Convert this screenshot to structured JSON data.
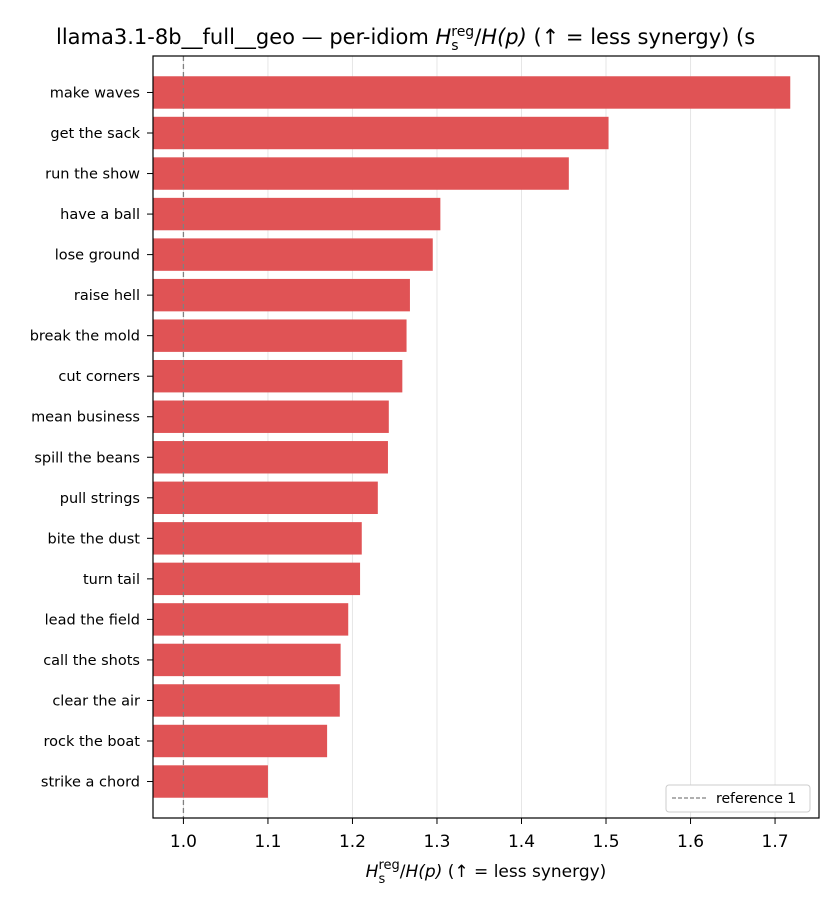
{
  "chart_data": {
    "type": "bar",
    "orientation": "horizontal",
    "title_prefix": "llama3.1-8b__full__geo — per-idiom ",
    "title_suffix": "  (↑ = less synergy) (s",
    "xlabel_suffix": "  (↑ = less synergy)",
    "metric": {
      "symbol": "H",
      "sub": "s",
      "sup": "reg",
      "denominator": "H(p)"
    },
    "categories": [
      "make waves",
      "get the sack",
      "run the show",
      "have a ball",
      "lose ground",
      "raise hell",
      "break the mold",
      "cut corners",
      "mean business",
      "spill the beans",
      "pull strings",
      "bite the dust",
      "turn tail",
      "lead the field",
      "call the shots",
      "clear the air",
      "rock the boat",
      "strike a chord"
    ],
    "values": [
      1.718,
      1.503,
      1.456,
      1.304,
      1.295,
      1.268,
      1.264,
      1.259,
      1.243,
      1.242,
      1.23,
      1.211,
      1.209,
      1.195,
      1.186,
      1.185,
      1.17,
      1.1
    ],
    "xlim": [
      0.964,
      1.752
    ],
    "xticks": [
      "1.0",
      "1.1",
      "1.2",
      "1.3",
      "1.4",
      "1.5",
      "1.6",
      "1.7"
    ],
    "bar_color": "#e05355",
    "grid_x": true,
    "reference_line": {
      "x": 1.0,
      "label": "reference 1",
      "color": "#808080"
    },
    "legend_position": "lower-right"
  }
}
